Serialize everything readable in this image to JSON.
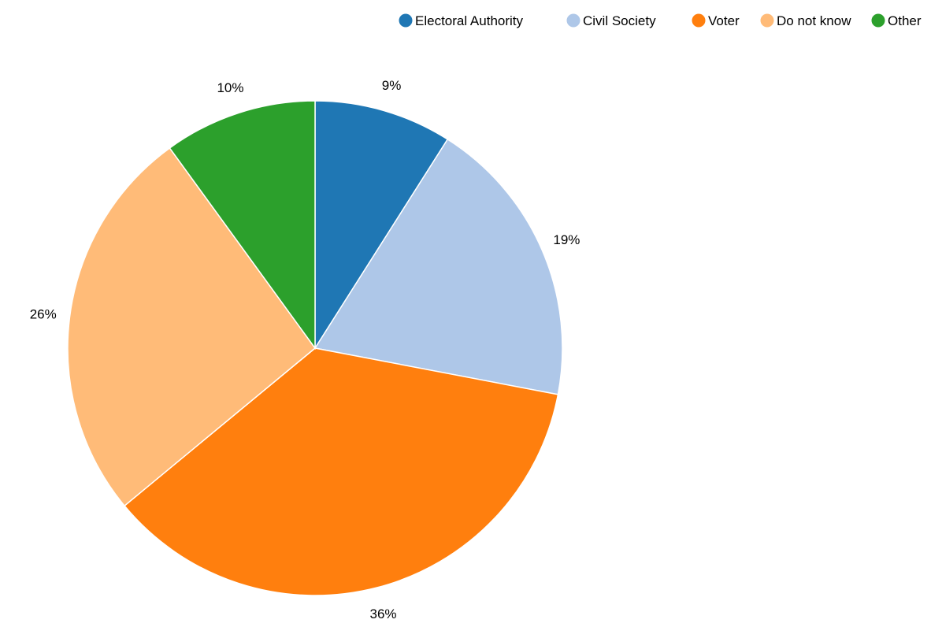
{
  "chart_data": {
    "type": "pie",
    "title": "",
    "categories": [
      "Electoral Authority",
      "Civil Society",
      "Voter",
      "Do not know",
      "Other"
    ],
    "values": [
      9,
      19,
      36,
      26,
      10
    ],
    "labels": [
      "9%",
      "19%",
      "36%",
      "26%",
      "10%"
    ],
    "colors": [
      "#1f77b4",
      "#aec7e8",
      "#ff7f0e",
      "#ffbb78",
      "#2ca02c"
    ],
    "legend": {
      "position": "top-right",
      "items": [
        "Electoral Authority",
        "Civil Society",
        "Voter",
        "Do not know",
        "Other"
      ]
    },
    "start_angle": "12 o'clock",
    "direction": "clockwise"
  }
}
